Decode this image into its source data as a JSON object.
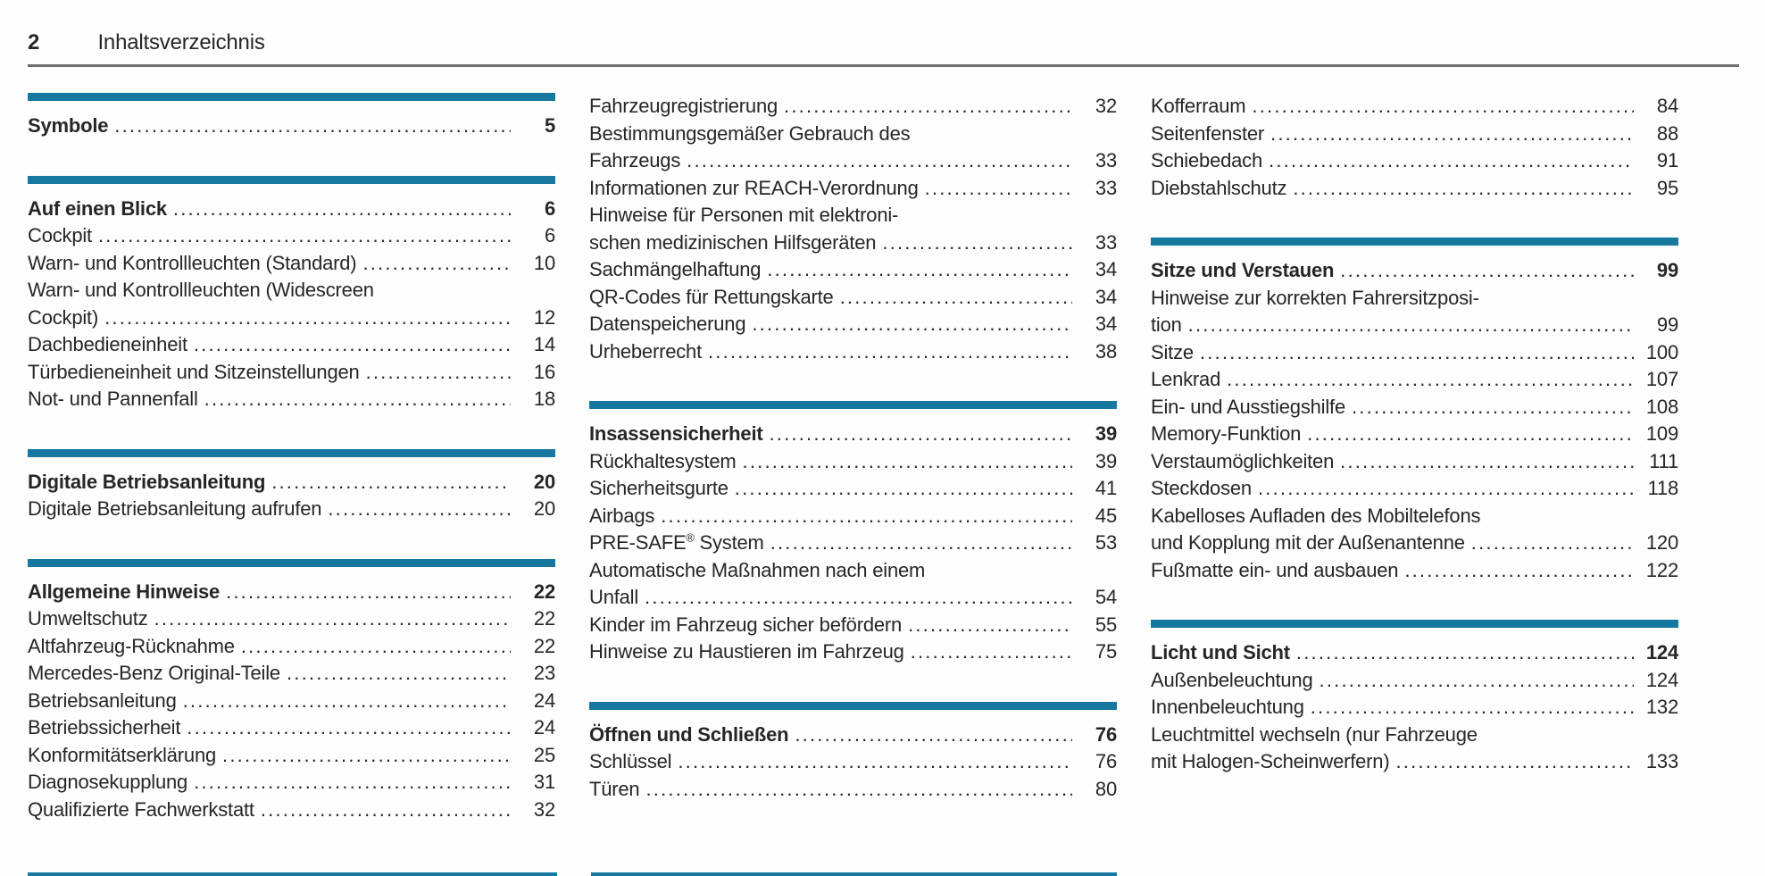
{
  "header": {
    "page_number": "2",
    "title": "Inhaltsverzeichnis"
  },
  "colors": {
    "accent_bar": "#16789E",
    "header_rule": "#6f6f6f",
    "text": "#262626"
  },
  "columns": [
    {
      "name": "column-1",
      "blocks": [
        {
          "type": "section",
          "title": "Symbole",
          "page": "5",
          "entries": []
        },
        {
          "type": "section",
          "title": "Auf einen Blick",
          "page": "6",
          "entries": [
            {
              "lines": [
                "Cockpit"
              ],
              "page": "6"
            },
            {
              "lines": [
                "Warn- und Kontrollleuchten (Standard)"
              ],
              "page": "10"
            },
            {
              "lines": [
                "Warn- und Kontrollleuchten (Widescreen",
                "Cockpit)"
              ],
              "page": "12"
            },
            {
              "lines": [
                "Dachbedieneinheit"
              ],
              "page": "14"
            },
            {
              "lines": [
                "Türbedieneinheit und Sitzeinstellungen"
              ],
              "page": "16"
            },
            {
              "lines": [
                "Not- und Pannenfall"
              ],
              "page": "18"
            }
          ]
        },
        {
          "type": "section",
          "title": "Digitale Betriebsanleitung",
          "page": "20",
          "entries": [
            {
              "lines": [
                "Digitale Betriebsanleitung aufrufen"
              ],
              "page": "20"
            }
          ]
        },
        {
          "type": "section",
          "title": "Allgemeine Hinweise",
          "page": "22",
          "entries": [
            {
              "lines": [
                "Umweltschutz"
              ],
              "page": "22"
            },
            {
              "lines": [
                "Altfahrzeug-Rücknahme"
              ],
              "page": "22"
            },
            {
              "lines": [
                "Mercedes-Benz Original-Teile"
              ],
              "page": "23"
            },
            {
              "lines": [
                "Betriebsanleitung"
              ],
              "page": "24"
            },
            {
              "lines": [
                "Betriebssicherheit"
              ],
              "page": "24"
            },
            {
              "lines": [
                "Konformitätserklärung"
              ],
              "page": "25"
            },
            {
              "lines": [
                "Diagnosekupplung"
              ],
              "page": "31"
            },
            {
              "lines": [
                "Qualifizierte Fachwerkstatt"
              ],
              "page": "32"
            }
          ]
        }
      ]
    },
    {
      "name": "column-2",
      "blocks": [
        {
          "type": "continuation",
          "entries": [
            {
              "lines": [
                "Fahrzeugregistrierung"
              ],
              "page": "32"
            },
            {
              "lines": [
                "Bestimmungsgemäßer Gebrauch des",
                "Fahrzeugs"
              ],
              "page": "33"
            },
            {
              "lines": [
                "Informationen zur REACH-Verordnung"
              ],
              "page": "33"
            },
            {
              "lines": [
                "Hinweise für Personen mit elektroni-",
                "schen medizinischen Hilfsgeräten"
              ],
              "page": "33"
            },
            {
              "lines": [
                "Sachmängelhaftung"
              ],
              "page": "34"
            },
            {
              "lines": [
                "QR-Codes für Rettungskarte"
              ],
              "page": "34"
            },
            {
              "lines": [
                "Datenspeicherung"
              ],
              "page": "34"
            },
            {
              "lines": [
                "Urheberrecht"
              ],
              "page": "38"
            }
          ]
        },
        {
          "type": "section",
          "title": "Insassensicherheit",
          "page": "39",
          "entries": [
            {
              "lines": [
                "Rückhaltesystem"
              ],
              "page": "39"
            },
            {
              "lines": [
                "Sicherheitsgurte"
              ],
              "page": "41"
            },
            {
              "lines": [
                "Airbags"
              ],
              "page": "45"
            },
            {
              "lines": [
                "PRE-SAFE® System"
              ],
              "page": "53"
            },
            {
              "lines": [
                "Automatische Maßnahmen nach einem",
                "Unfall"
              ],
              "page": "54"
            },
            {
              "lines": [
                "Kinder im Fahrzeug sicher befördern"
              ],
              "page": "55"
            },
            {
              "lines": [
                "Hinweise zu Haustieren im Fahrzeug"
              ],
              "page": "75"
            }
          ]
        },
        {
          "type": "section",
          "title": "Öffnen und Schließen",
          "page": "76",
          "entries": [
            {
              "lines": [
                "Schlüssel"
              ],
              "page": "76"
            },
            {
              "lines": [
                "Türen"
              ],
              "page": "80"
            }
          ]
        }
      ]
    },
    {
      "name": "column-3",
      "blocks": [
        {
          "type": "continuation",
          "entries": [
            {
              "lines": [
                "Kofferraum"
              ],
              "page": "84"
            },
            {
              "lines": [
                "Seitenfenster"
              ],
              "page": "88"
            },
            {
              "lines": [
                "Schiebedach"
              ],
              "page": "91"
            },
            {
              "lines": [
                "Diebstahlschutz"
              ],
              "page": "95"
            }
          ]
        },
        {
          "type": "section",
          "title": "Sitze und Verstauen",
          "page": "99",
          "entries": [
            {
              "lines": [
                "Hinweise zur korrekten Fahrersitzposi-",
                "tion"
              ],
              "page": "99"
            },
            {
              "lines": [
                "Sitze"
              ],
              "page": "100"
            },
            {
              "lines": [
                "Lenkrad"
              ],
              "page": "107"
            },
            {
              "lines": [
                "Ein- und Ausstiegshilfe"
              ],
              "page": "108"
            },
            {
              "lines": [
                "Memory-Funktion"
              ],
              "page": "109"
            },
            {
              "lines": [
                "Verstaumöglichkeiten"
              ],
              "page": "111"
            },
            {
              "lines": [
                "Steckdosen"
              ],
              "page": "118"
            },
            {
              "lines": [
                "Kabelloses Aufladen des Mobiltelefons",
                "und Kopplung mit der Außenantenne"
              ],
              "page": "120"
            },
            {
              "lines": [
                "Fußmatte ein- und ausbauen"
              ],
              "page": "122"
            }
          ]
        },
        {
          "type": "section",
          "title": "Licht und Sicht",
          "page": "124",
          "entries": [
            {
              "lines": [
                "Außenbeleuchtung"
              ],
              "page": "124"
            },
            {
              "lines": [
                "Innenbeleuchtung"
              ],
              "page": "132"
            },
            {
              "lines": [
                "Leuchtmittel wechseln (nur Fahrzeuge",
                "mit Halogen-Scheinwerfern)"
              ],
              "page": "133"
            }
          ]
        }
      ]
    }
  ]
}
